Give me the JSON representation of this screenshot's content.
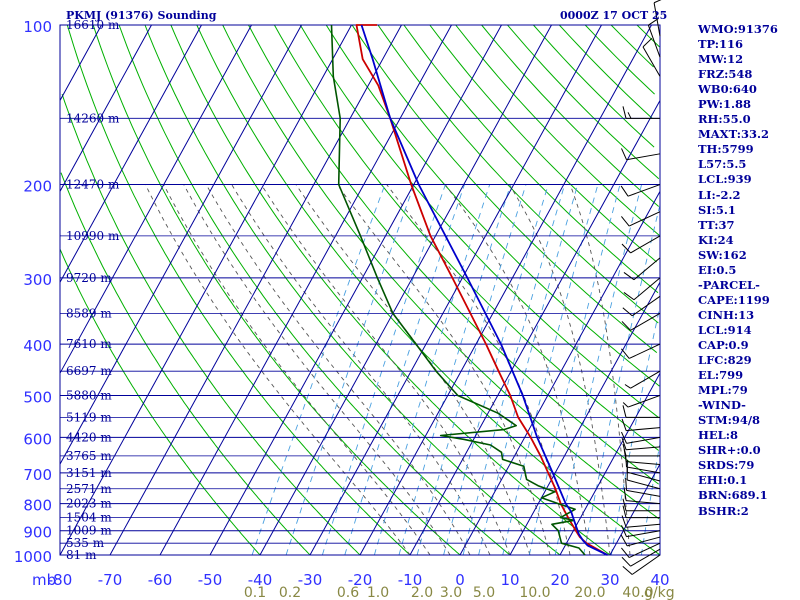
{
  "title": "PKMJ (91376) Sounding",
  "time_label": "0000Z 17 OCT 25",
  "indices": [
    "WMO:91376",
    "TP:116",
    "MW:12",
    "FRZ:548",
    "WB0:640",
    "PW:1.88",
    "RH:55.0",
    "MAXT:33.2",
    "TH:5799",
    "L57:5.5",
    "LCL:939",
    "LI:-2.2",
    "SI:5.1",
    "TT:37",
    "KI:24",
    "SW:162",
    "EI:0.5",
    "-PARCEL-",
    "CAPE:1199",
    "CINH:13",
    "LCL:914",
    "CAP:0.9",
    "LFC:829",
    "EL:799",
    "MPL:79",
    "-WIND-",
    "STM:94/8",
    "HEL:8",
    "SHR+:0.0",
    "SRDS:79",
    "EHI:0.1",
    "BRN:689.1",
    "BSHR:2"
  ],
  "colors": {
    "grid": "#00009a",
    "dry_adiabat": "#00b000",
    "moist_adiabat": "#555555",
    "mixing_ratio": "#4aa0e0",
    "temperature": "#cc0000",
    "dewpoint": "#005500",
    "parcel": "#0000cc",
    "pressure_label": "#3030ff",
    "mixing_label": "#888844"
  },
  "chart_data": {
    "type": "line",
    "title": "PKMJ (91376) Sounding",
    "pressure_ticks": [
      100,
      200,
      300,
      400,
      500,
      600,
      700,
      800,
      900,
      1000
    ],
    "pressure_unit": "mb",
    "temperature_ticks": [
      -80,
      -70,
      -60,
      -50,
      -40,
      -30,
      -20,
      -10,
      0,
      10,
      20,
      30,
      40
    ],
    "xlim": [
      -80,
      40
    ],
    "ylim": [
      1000,
      100
    ],
    "height_labels": [
      {
        "p": 100,
        "text": "16610 m"
      },
      {
        "p": 150,
        "text": "14260 m"
      },
      {
        "p": 200,
        "text": "12470 m"
      },
      {
        "p": 250,
        "text": "10990 m"
      },
      {
        "p": 300,
        "text": "9720 m"
      },
      {
        "p": 350,
        "text": "8589 m"
      },
      {
        "p": 400,
        "text": "7610 m"
      },
      {
        "p": 450,
        "text": "6697 m"
      },
      {
        "p": 500,
        "text": "5880 m"
      },
      {
        "p": 550,
        "text": "5119 m"
      },
      {
        "p": 600,
        "text": "4420 m"
      },
      {
        "p": 650,
        "text": "3765 m"
      },
      {
        "p": 700,
        "text": "3151 m"
      },
      {
        "p": 750,
        "text": "2571 m"
      },
      {
        "p": 800,
        "text": "2023 m"
      },
      {
        "p": 850,
        "text": "1504 m"
      },
      {
        "p": 900,
        "text": "1009 m"
      },
      {
        "p": 950,
        "text": "535 m"
      },
      {
        "p": 1000,
        "text": "81 m"
      }
    ],
    "mixing_ratio_labels": [
      {
        "value": 0.1,
        "text": "0.1"
      },
      {
        "value": 0.2,
        "text": "0.2"
      },
      {
        "value": 0.6,
        "text": "0.6"
      },
      {
        "value": 1.0,
        "text": "1.0"
      },
      {
        "value": 2.0,
        "text": "2.0"
      },
      {
        "value": 3.0,
        "text": "3.0"
      },
      {
        "value": 5.0,
        "text": "5.0"
      },
      {
        "value": 10.0,
        "text": "10.0"
      },
      {
        "value": 20.0,
        "text": "20.0"
      },
      {
        "value": 40.0,
        "text": "40.0"
      }
    ],
    "mixing_unit_label": "g/kg",
    "series": [
      {
        "key": "temperature",
        "points": [
          [
            1000,
            29.5
          ],
          [
            950,
            24
          ],
          [
            925,
            22
          ],
          [
            900,
            20.5
          ],
          [
            850,
            17.5
          ],
          [
            800,
            14.5
          ],
          [
            750,
            11.8
          ],
          [
            700,
            8.6
          ],
          [
            650,
            5.2
          ],
          [
            600,
            1.2
          ],
          [
            550,
            -3.5
          ],
          [
            500,
            -7.5
          ],
          [
            450,
            -12.5
          ],
          [
            400,
            -18
          ],
          [
            350,
            -24.5
          ],
          [
            300,
            -32
          ],
          [
            250,
            -41
          ],
          [
            200,
            -50.5
          ],
          [
            150,
            -62
          ],
          [
            130,
            -68
          ],
          [
            116,
            -74
          ],
          [
            100,
            -79
          ],
          [
            85,
            -79
          ]
        ]
      },
      {
        "key": "dewpoint",
        "points": [
          [
            1000,
            25
          ],
          [
            970,
            23
          ],
          [
            950,
            19
          ],
          [
            925,
            18
          ],
          [
            900,
            17
          ],
          [
            875,
            15
          ],
          [
            860,
            19
          ],
          [
            850,
            16
          ],
          [
            820,
            18
          ],
          [
            800,
            14
          ],
          [
            780,
            10
          ],
          [
            760,
            12
          ],
          [
            740,
            8
          ],
          [
            720,
            5
          ],
          [
            700,
            4
          ],
          [
            680,
            3
          ],
          [
            660,
            -2
          ],
          [
            640,
            -3
          ],
          [
            620,
            -6
          ],
          [
            605,
            -12
          ],
          [
            595,
            -17
          ],
          [
            580,
            -5
          ],
          [
            570,
            -3
          ],
          [
            540,
            -8
          ],
          [
            500,
            -18
          ],
          [
            450,
            -25
          ],
          [
            400,
            -32
          ],
          [
            350,
            -40
          ],
          [
            300,
            -47
          ],
          [
            250,
            -55
          ],
          [
            200,
            -65
          ],
          [
            150,
            -72
          ],
          [
            125,
            -78
          ],
          [
            116,
            -80
          ],
          [
            100,
            -84
          ]
        ]
      },
      {
        "key": "parcel",
        "points": [
          [
            1000,
            29.5
          ],
          [
            960,
            24.5
          ],
          [
            939,
            23
          ],
          [
            914,
            21.5
          ],
          [
            850,
            18.5
          ],
          [
            829,
            17.5
          ],
          [
            800,
            15.5
          ],
          [
            700,
            9.5
          ],
          [
            600,
            2.5
          ],
          [
            500,
            -5
          ],
          [
            400,
            -15
          ],
          [
            300,
            -29
          ],
          [
            200,
            -49
          ],
          [
            150,
            -62
          ],
          [
            116,
            -72
          ],
          [
            100,
            -78
          ]
        ]
      }
    ],
    "wind_barbs": [
      {
        "p": 1000,
        "dir": 235,
        "spd": 10
      },
      {
        "p": 975,
        "dir": 240,
        "spd": 10
      },
      {
        "p": 950,
        "dir": 245,
        "spd": 10
      },
      {
        "p": 925,
        "dir": 255,
        "spd": 10
      },
      {
        "p": 900,
        "dir": 260,
        "spd": 10
      },
      {
        "p": 875,
        "dir": 265,
        "spd": 10
      },
      {
        "p": 850,
        "dir": 270,
        "spd": 10
      },
      {
        "p": 825,
        "dir": 270,
        "spd": 10
      },
      {
        "p": 800,
        "dir": 275,
        "spd": 10
      },
      {
        "p": 775,
        "dir": 280,
        "spd": 10
      },
      {
        "p": 750,
        "dir": 285,
        "spd": 10
      },
      {
        "p": 725,
        "dir": 285,
        "spd": 10
      },
      {
        "p": 700,
        "dir": 280,
        "spd": 10
      },
      {
        "p": 675,
        "dir": 275,
        "spd": 10
      },
      {
        "p": 650,
        "dir": 270,
        "spd": 10
      },
      {
        "p": 625,
        "dir": 265,
        "spd": 10
      },
      {
        "p": 600,
        "dir": 260,
        "spd": 10
      },
      {
        "p": 575,
        "dir": 265,
        "spd": 10
      },
      {
        "p": 550,
        "dir": 270,
        "spd": 10
      },
      {
        "p": 500,
        "dir": 250,
        "spd": 5
      },
      {
        "p": 450,
        "dir": 240,
        "spd": 5
      },
      {
        "p": 400,
        "dir": 245,
        "spd": 10
      },
      {
        "p": 350,
        "dir": 240,
        "spd": 10
      },
      {
        "p": 325,
        "dir": 235,
        "spd": 10
      },
      {
        "p": 300,
        "dir": 230,
        "spd": 10
      },
      {
        "p": 275,
        "dir": 230,
        "spd": 10
      },
      {
        "p": 250,
        "dir": 240,
        "spd": 10
      },
      {
        "p": 225,
        "dir": 245,
        "spd": 10
      },
      {
        "p": 200,
        "dir": 250,
        "spd": 10
      },
      {
        "p": 175,
        "dir": 260,
        "spd": 10
      },
      {
        "p": 150,
        "dir": 270,
        "spd": 15
      },
      {
        "p": 125,
        "dir": 330,
        "spd": 10
      },
      {
        "p": 115,
        "dir": 340,
        "spd": 10
      },
      {
        "p": 105,
        "dir": 350,
        "spd": 10
      }
    ]
  }
}
